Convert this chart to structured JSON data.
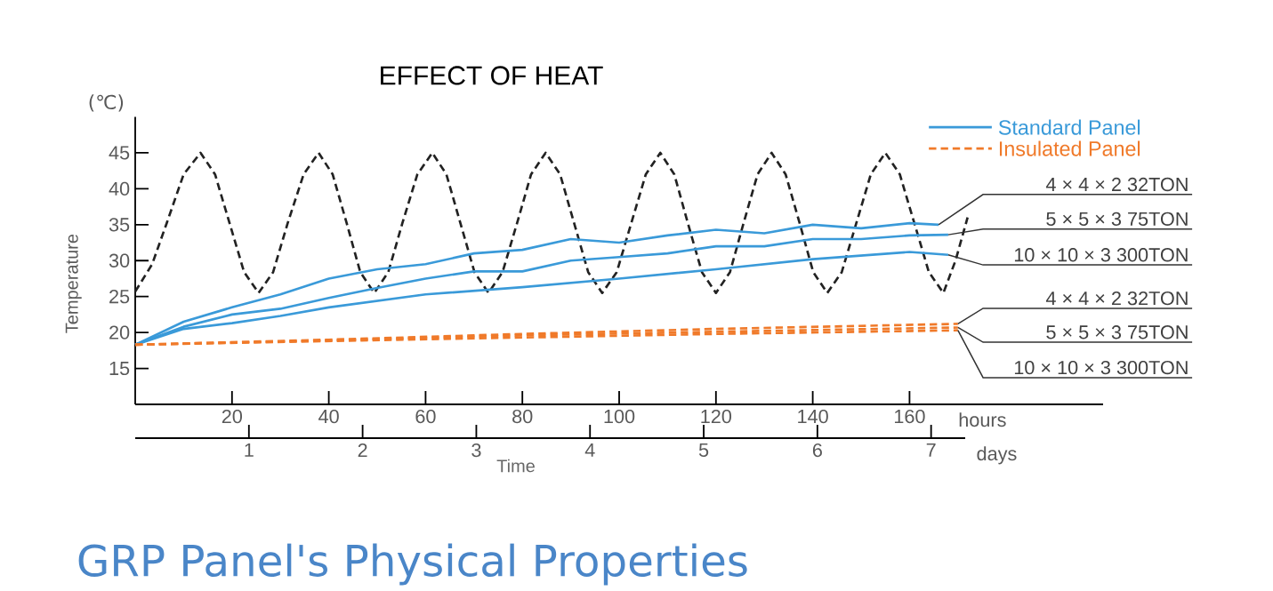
{
  "chart_data": {
    "type": "line",
    "title": "EFFECT OF HEAT",
    "subtitle": "GRP Panel's Physical Properties",
    "xlabel": "hours",
    "x2label": "days",
    "ylabel": "Temperature",
    "annotations": [
      "(℃)",
      "Time",
      "Standard Panel",
      "Insulated Panel"
    ],
    "xlim": [
      0,
      200
    ],
    "xticks": [
      20,
      40,
      60,
      80,
      100,
      120,
      140,
      160
    ],
    "x2lim": [
      0,
      7.3
    ],
    "x2ticks": [
      1,
      2,
      3,
      4,
      5,
      6,
      7
    ],
    "ylim": [
      10,
      50
    ],
    "yticks": [
      15,
      20,
      25,
      30,
      35,
      40,
      45
    ],
    "series": [
      {
        "color": "#222222",
        "line_style": "dashed",
        "x": [
          0,
          3.5,
          6.5,
          10,
          13.5,
          16.5,
          19.5,
          22.5,
          25.5,
          28.5,
          31.5,
          34.8,
          37.9,
          40.8,
          43.7,
          46.5,
          49.4,
          52.3,
          55.2,
          58.3,
          61.4,
          64.3,
          67.2,
          70.1,
          73,
          75.9,
          78.9,
          81.8,
          84.8,
          87.8,
          90.7,
          93.6,
          96.5,
          99.5,
          102.5,
          105.5,
          108.5,
          111.4,
          114.2,
          117.1,
          120,
          122.9,
          125.7,
          128.6,
          131.5,
          134.4,
          137.3,
          140.1,
          143,
          146,
          149,
          152,
          155,
          158,
          161,
          164,
          167,
          169.5,
          172
        ],
        "values": [
          25.7,
          29.5,
          35.2,
          42,
          45,
          42,
          35.2,
          28.4,
          25.5,
          28.4,
          35.2,
          42,
          45,
          42,
          35.2,
          28.4,
          25.5,
          28.4,
          35.2,
          42,
          45,
          42,
          35.2,
          28.4,
          25.5,
          28.4,
          35.2,
          42,
          45,
          42,
          35.2,
          28.4,
          25.5,
          28.4,
          35.2,
          42,
          45,
          42,
          35.2,
          28.4,
          25.5,
          28.4,
          35.2,
          42,
          45,
          42,
          35.2,
          28.4,
          25.5,
          28.4,
          35.2,
          42,
          45,
          42,
          35.2,
          28.4,
          25.5,
          30,
          36
        ]
      },
      {
        "name": "4 × 4 × 2 32TON",
        "color": "#3a9ad9",
        "line_style": "solid",
        "x": [
          0,
          10,
          20,
          30,
          40,
          50,
          60,
          70,
          80,
          90,
          100,
          110,
          120,
          130,
          140,
          150,
          160,
          166
        ],
        "values": [
          18.3,
          21.5,
          23.5,
          25.3,
          27.5,
          28.8,
          29.5,
          31,
          31.5,
          33,
          32.5,
          33.5,
          34.3,
          33.8,
          35,
          34.5,
          35.2,
          35
        ]
      },
      {
        "name": "5 × 5 × 3 75TON",
        "color": "#3a9ad9",
        "line_style": "solid",
        "x": [
          0,
          10,
          20,
          30,
          40,
          50,
          60,
          70,
          80,
          90,
          100,
          110,
          120,
          130,
          140,
          150,
          160,
          168
        ],
        "values": [
          18.3,
          20.8,
          22.5,
          23.3,
          24.8,
          26.2,
          27.5,
          28.5,
          28.5,
          30,
          30.5,
          31,
          32,
          32,
          33,
          33,
          33.5,
          33.6
        ]
      },
      {
        "name": "10 × 10 × 3 300TON",
        "color": "#3a9ad9",
        "line_style": "solid",
        "x": [
          0,
          10,
          20,
          30,
          40,
          60,
          80,
          100,
          120,
          140,
          160,
          168
        ],
        "values": [
          18.3,
          20.5,
          21.3,
          22.3,
          23.5,
          25.3,
          26.3,
          27.5,
          28.8,
          30.2,
          31.2,
          30.8
        ]
      },
      {
        "name": "4 × 4 × 2 32TON",
        "color": "#f07a2a",
        "line_style": "dashed",
        "x": [
          0,
          40,
          80,
          120,
          170
        ],
        "values": [
          18.3,
          19.0,
          19.8,
          20.5,
          21.2
        ]
      },
      {
        "name": "5 × 5 × 3 75TON",
        "color": "#f07a2a",
        "line_style": "dashed",
        "x": [
          0,
          40,
          80,
          120,
          170
        ],
        "values": [
          18.3,
          18.9,
          19.6,
          20.1,
          20.7
        ]
      },
      {
        "name": "10 × 10 × 3 300TON",
        "color": "#f07a2a",
        "line_style": "dashed",
        "x": [
          0,
          40,
          80,
          120,
          170
        ],
        "values": [
          18.3,
          18.8,
          19.3,
          19.8,
          20.3
        ]
      }
    ]
  }
}
